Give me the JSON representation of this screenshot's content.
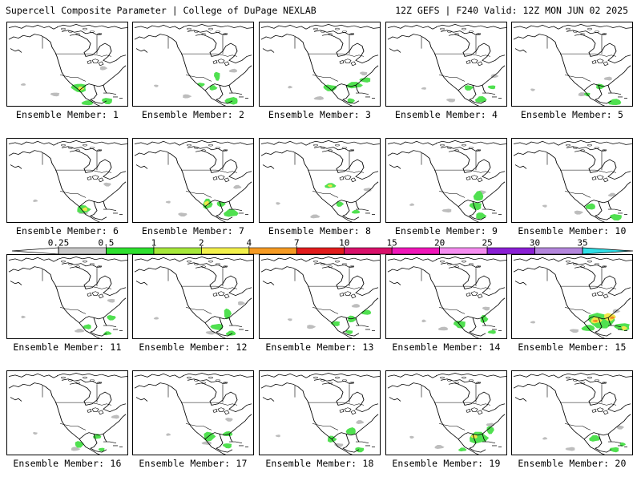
{
  "header": {
    "title_left": "Supercell Composite Parameter | College of DuPage NEXLAB",
    "title_right": "12Z GEFS | F240 Valid: 12Z MON JUN 02 2025"
  },
  "members": [
    {
      "label": "Ensemble Member: 1",
      "blobs": [
        [
          90,
          100,
          10,
          7,
          "g"
        ],
        [
          92,
          101,
          4,
          3,
          "y"
        ],
        [
          100,
          123,
          7,
          4,
          "g"
        ],
        [
          125,
          120,
          7,
          5,
          "g"
        ]
      ]
    },
    {
      "label": "Ensemble Member: 2",
      "blobs": [
        [
          105,
          82,
          4,
          7,
          "g"
        ],
        [
          100,
          100,
          5,
          4,
          "g"
        ],
        [
          123,
          120,
          8,
          6,
          "g"
        ],
        [
          85,
          95,
          5,
          3,
          "g"
        ]
      ]
    },
    {
      "label": "Ensemble Member: 3",
      "blobs": [
        [
          88,
          100,
          9,
          5,
          "g"
        ],
        [
          118,
          96,
          10,
          5,
          "g"
        ],
        [
          132,
          88,
          7,
          4,
          "g"
        ],
        [
          114,
          120,
          5,
          4,
          "g"
        ]
      ]
    },
    {
      "label": "Ensemble Member: 4",
      "blobs": [
        [
          103,
          100,
          6,
          4,
          "g"
        ],
        [
          118,
          118,
          7,
          5,
          "g"
        ],
        [
          132,
          99,
          5,
          3,
          "g"
        ]
      ]
    },
    {
      "label": "Ensemble Member: 5",
      "blobs": [
        [
          110,
          98,
          6,
          4,
          "g"
        ],
        [
          128,
          122,
          8,
          5,
          "g"
        ],
        [
          94,
          110,
          4,
          3,
          "g"
        ]
      ]
    },
    {
      "label": "Ensemble Member: 6",
      "blobs": [
        [
          95,
          108,
          9,
          6,
          "g"
        ],
        [
          97,
          108,
          3,
          3,
          "y"
        ]
      ]
    },
    {
      "label": "Ensemble Member: 7",
      "blobs": [
        [
          93,
          100,
          6,
          8,
          "g"
        ],
        [
          92,
          99,
          3,
          4,
          "y"
        ],
        [
          110,
          100,
          6,
          4,
          "g"
        ],
        [
          122,
          114,
          9,
          6,
          "g"
        ]
      ]
    },
    {
      "label": "Ensemble Member: 8",
      "blobs": [
        [
          88,
          72,
          7,
          4,
          "g"
        ],
        [
          88,
          72,
          3,
          2,
          "y"
        ],
        [
          100,
          100,
          5,
          4,
          "g"
        ],
        [
          120,
          112,
          5,
          3,
          "g"
        ]
      ]
    },
    {
      "label": "Ensemble Member: 9",
      "blobs": [
        [
          115,
          88,
          6,
          8,
          "g"
        ],
        [
          112,
          103,
          8,
          6,
          "g"
        ],
        [
          118,
          118,
          7,
          5,
          "g"
        ]
      ]
    },
    {
      "label": "Ensemble Member: 10",
      "blobs": [
        [
          98,
          104,
          6,
          5,
          "g"
        ],
        [
          130,
          120,
          8,
          5,
          "g"
        ]
      ]
    },
    {
      "label": "Ensemble Member: 11",
      "blobs": [
        [
          100,
          110,
          5,
          4,
          "g"
        ],
        [
          130,
          96,
          6,
          4,
          "g"
        ],
        [
          125,
          120,
          5,
          3,
          "g"
        ]
      ]
    },
    {
      "label": "Ensemble Member: 12",
      "blobs": [
        [
          105,
          110,
          8,
          5,
          "g"
        ],
        [
          118,
          90,
          5,
          8,
          "g"
        ],
        [
          122,
          120,
          6,
          4,
          "g"
        ]
      ]
    },
    {
      "label": "Ensemble Member: 13",
      "blobs": [
        [
          95,
          105,
          6,
          4,
          "g"
        ],
        [
          115,
          98,
          6,
          5,
          "g"
        ],
        [
          133,
          88,
          6,
          4,
          "g"
        ],
        [
          112,
          118,
          5,
          3,
          "g"
        ]
      ]
    },
    {
      "label": "Ensemble Member: 14",
      "blobs": [
        [
          92,
          106,
          8,
          6,
          "g"
        ],
        [
          122,
          98,
          5,
          6,
          "g"
        ],
        [
          132,
          118,
          5,
          3,
          "g"
        ]
      ]
    },
    {
      "label": "Ensemble Member: 15",
      "blobs": [
        [
          112,
          100,
          18,
          12,
          "g"
        ],
        [
          105,
          100,
          7,
          5,
          "y"
        ],
        [
          104,
          101,
          3,
          2,
          "o"
        ],
        [
          122,
          95,
          8,
          6,
          "y"
        ],
        [
          125,
          96,
          3,
          2,
          "o"
        ],
        [
          138,
          110,
          10,
          6,
          "g"
        ],
        [
          140,
          112,
          4,
          3,
          "y"
        ],
        [
          95,
          112,
          8,
          5,
          "g"
        ]
      ]
    },
    {
      "label": "Ensemble Member: 16",
      "blobs": [
        [
          90,
          112,
          6,
          5,
          "g"
        ],
        [
          112,
          100,
          5,
          4,
          "g"
        ],
        [
          118,
          120,
          4,
          3,
          "g"
        ]
      ]
    },
    {
      "label": "Ensemble Member: 17",
      "blobs": [
        [
          95,
          100,
          8,
          7,
          "g"
        ],
        [
          118,
          96,
          6,
          4,
          "g"
        ],
        [
          118,
          114,
          6,
          4,
          "g"
        ]
      ]
    },
    {
      "label": "Ensemble Member: 18",
      "blobs": [
        [
          90,
          104,
          6,
          5,
          "g"
        ],
        [
          114,
          92,
          6,
          6,
          "g"
        ],
        [
          125,
          120,
          6,
          4,
          "g"
        ]
      ]
    },
    {
      "label": "Ensemble Member: 19",
      "blobs": [
        [
          115,
          102,
          12,
          9,
          "g"
        ],
        [
          110,
          100,
          4,
          3,
          "y"
        ],
        [
          130,
          90,
          5,
          6,
          "g"
        ],
        [
          95,
          120,
          5,
          3,
          "g"
        ]
      ]
    },
    {
      "label": "Ensemble Member: 20",
      "blobs": [
        [
          103,
          103,
          7,
          5,
          "g"
        ],
        [
          128,
          120,
          6,
          4,
          "g"
        ],
        [
          138,
          112,
          4,
          3,
          "g"
        ]
      ]
    }
  ],
  "legend": {
    "ticks": [
      "0.25",
      "0.5",
      "1",
      "2",
      "4",
      "7",
      "10",
      "15",
      "20",
      "25",
      "30",
      "35"
    ],
    "colors": [
      "#c8c8c8",
      "#2ee02e",
      "#a6e83a",
      "#f2f04a",
      "#f59a22",
      "#e21c1c",
      "#d8106a",
      "#f015b8",
      "#f58cf0",
      "#8a1fd4",
      "#b486dc",
      "#2fe0e8"
    ]
  },
  "palette": {
    "g": "#50e050",
    "y": "#f0e84a",
    "o": "#f28a20",
    "gray": "#bdbdbd"
  }
}
